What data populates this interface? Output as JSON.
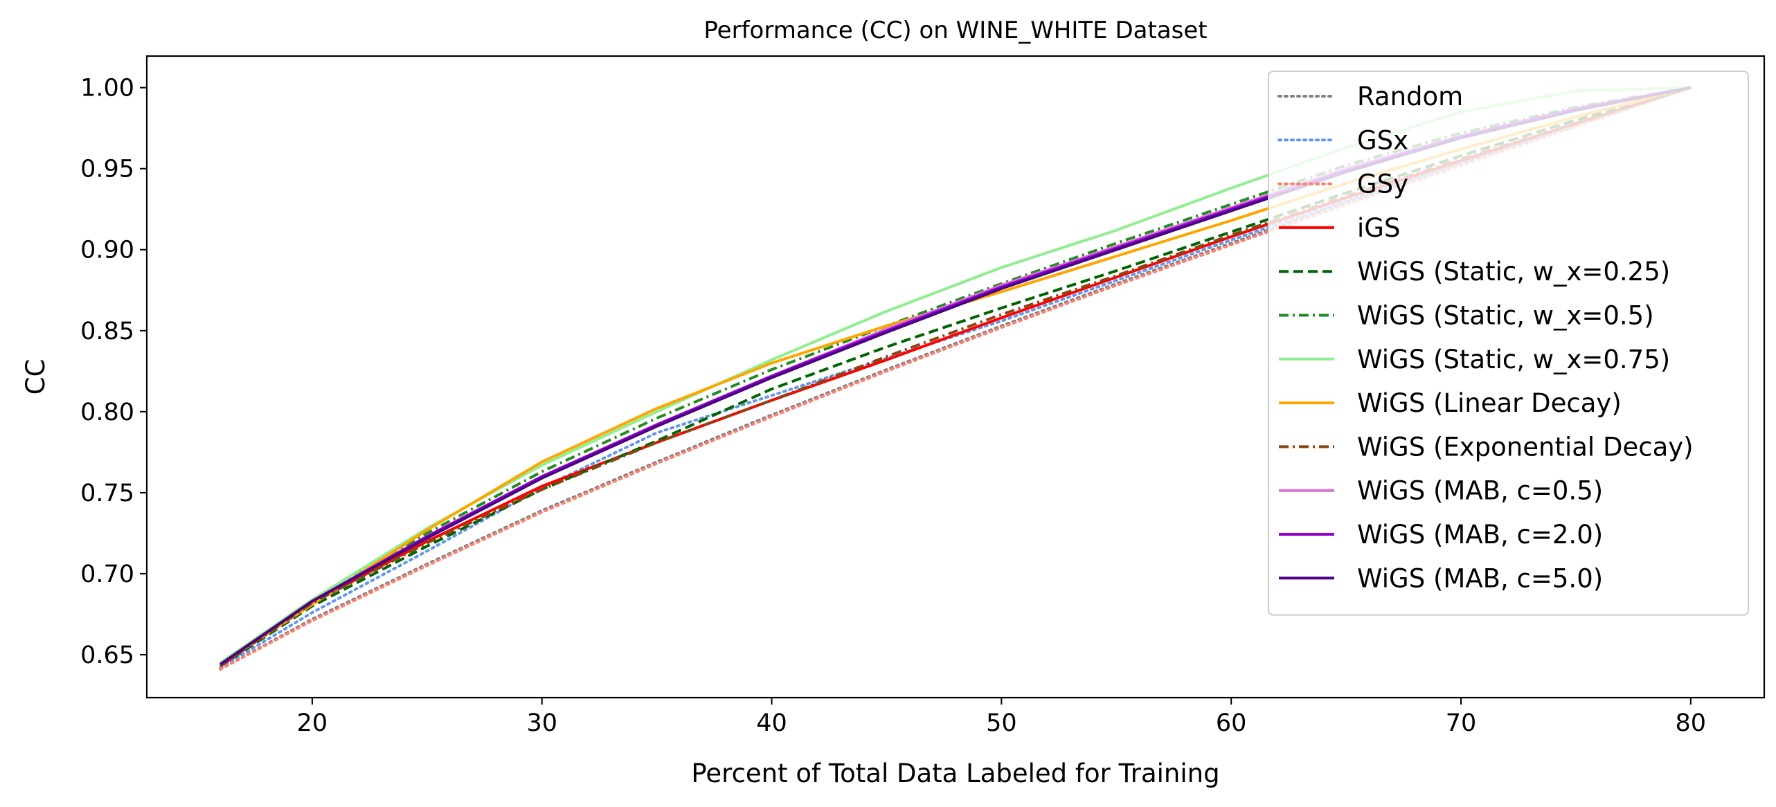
{
  "chart_data": {
    "type": "line",
    "title": "Performance (CC) on WINE_WHITE Dataset",
    "xlabel": "Percent of Total Data Labeled for Training",
    "ylabel": "CC",
    "xlim": [
      12.8,
      83.2
    ],
    "ylim": [
      0.6235,
      1.0195
    ],
    "xticks": [
      20,
      30,
      40,
      50,
      60,
      70,
      80
    ],
    "yticks": [
      0.65,
      0.7,
      0.75,
      0.8,
      0.85,
      0.9,
      0.95,
      1.0
    ],
    "xtick_labels": [
      "20",
      "30",
      "40",
      "50",
      "60",
      "70",
      "80"
    ],
    "ytick_labels": [
      "0.65",
      "0.70",
      "0.75",
      "0.80",
      "0.85",
      "0.90",
      "0.95",
      "1.00"
    ],
    "legend_position": "upper right",
    "grid": false,
    "x": [
      16,
      20,
      25,
      30,
      35,
      40,
      45,
      50,
      55,
      60,
      65,
      70,
      75,
      80
    ],
    "series": [
      {
        "name": "Random",
        "color": "#808080",
        "dash": "dotted",
        "values": [
          0.641,
          0.672,
          0.706,
          0.739,
          0.769,
          0.798,
          0.826,
          0.853,
          0.879,
          0.904,
          0.929,
          0.953,
          0.977,
          1.0
        ]
      },
      {
        "name": "GSx",
        "color": "#6495ED",
        "dash": "dotted",
        "values": [
          0.642,
          0.676,
          0.714,
          0.753,
          0.787,
          0.81,
          0.833,
          0.856,
          0.881,
          0.906,
          0.93,
          0.954,
          0.977,
          1.0
        ]
      },
      {
        "name": "GSy",
        "color": "#FA8072",
        "dash": "dotted",
        "values": [
          0.641,
          0.671,
          0.705,
          0.738,
          0.768,
          0.797,
          0.825,
          0.852,
          0.878,
          0.903,
          0.928,
          0.952,
          0.976,
          1.0
        ]
      },
      {
        "name": "iGS",
        "color": "#FF0000",
        "dash": "solid",
        "values": [
          0.643,
          0.682,
          0.72,
          0.754,
          0.781,
          0.807,
          0.832,
          0.858,
          0.883,
          0.908,
          0.932,
          0.955,
          0.978,
          1.0
        ]
      },
      {
        "name": "WiGS (Static, w_x=0.25)",
        "color": "#006400",
        "dash": "dashed",
        "values": [
          0.643,
          0.68,
          0.717,
          0.752,
          0.782,
          0.814,
          0.84,
          0.864,
          0.887,
          0.911,
          0.935,
          0.958,
          0.98,
          1.0
        ]
      },
      {
        "name": "WiGS (Static, w_x=0.5)",
        "color": "#228B22",
        "dash": "dashdot",
        "values": [
          0.644,
          0.683,
          0.725,
          0.763,
          0.796,
          0.826,
          0.853,
          0.879,
          0.904,
          0.928,
          0.952,
          0.972,
          0.988,
          1.0
        ]
      },
      {
        "name": "WiGS (Static, w_x=0.75)",
        "color": "#90EE90",
        "dash": "solid",
        "values": [
          0.645,
          0.684,
          0.728,
          0.767,
          0.8,
          0.832,
          0.862,
          0.889,
          0.912,
          0.938,
          0.963,
          0.985,
          0.998,
          1.0
        ]
      },
      {
        "name": "WiGS (Linear Decay)",
        "color": "#FFA500",
        "dash": "solid",
        "values": [
          0.644,
          0.681,
          0.727,
          0.769,
          0.802,
          0.83,
          0.853,
          0.874,
          0.896,
          0.918,
          0.941,
          0.962,
          0.982,
          1.0
        ]
      },
      {
        "name": "WiGS (Exponential Decay)",
        "color": "#8B4513",
        "dash": "dashdot",
        "values": [
          0.643,
          0.682,
          0.719,
          0.752,
          0.781,
          0.807,
          0.834,
          0.86,
          0.884,
          0.909,
          0.933,
          0.956,
          0.978,
          1.0
        ]
      },
      {
        "name": "WiGS (MAB, c=0.5)",
        "color": "#DA70D6",
        "dash": "solid",
        "values": [
          0.644,
          0.683,
          0.723,
          0.76,
          0.792,
          0.822,
          0.851,
          0.878,
          0.902,
          0.926,
          0.95,
          0.97,
          0.987,
          1.0
        ]
      },
      {
        "name": "WiGS (MAB, c=2.0)",
        "color": "#9400D3",
        "dash": "solid",
        "values": [
          0.644,
          0.683,
          0.723,
          0.76,
          0.792,
          0.822,
          0.85,
          0.877,
          0.901,
          0.925,
          0.949,
          0.97,
          0.987,
          1.0
        ]
      },
      {
        "name": "WiGS (MAB, c=5.0)",
        "color": "#4B0082",
        "dash": "solid",
        "values": [
          0.644,
          0.683,
          0.722,
          0.759,
          0.791,
          0.821,
          0.849,
          0.876,
          0.9,
          0.924,
          0.948,
          0.969,
          0.986,
          1.0
        ]
      }
    ]
  }
}
